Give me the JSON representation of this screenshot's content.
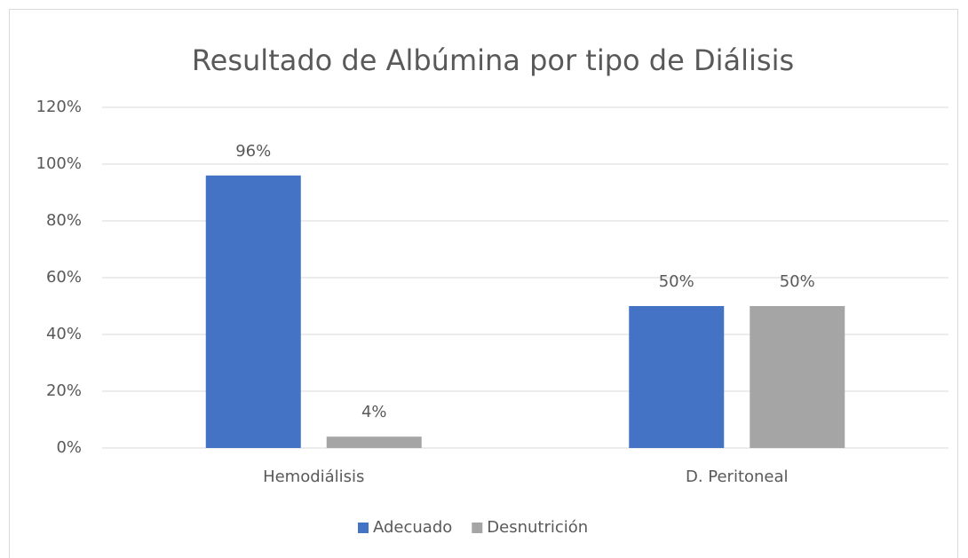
{
  "chart_data": {
    "type": "bar",
    "title": "Resultado de Albúmina por tipo de Diálisis",
    "categories": [
      "Hemodiálisis",
      "D. Peritoneal"
    ],
    "series": [
      {
        "name": "Adecuado",
        "color": "#4472c4",
        "values": [
          96,
          50
        ],
        "value_labels": [
          "96%",
          "50%"
        ]
      },
      {
        "name": "Desnutrición",
        "color": "#a5a5a5",
        "values": [
          4,
          50
        ],
        "value_labels": [
          "4%",
          "50%"
        ]
      }
    ],
    "ylim": [
      0,
      120
    ],
    "yticks": [
      {
        "value": 0,
        "label": "0%"
      },
      {
        "value": 20,
        "label": "20%"
      },
      {
        "value": 40,
        "label": "40%"
      },
      {
        "value": 60,
        "label": "60%"
      },
      {
        "value": 80,
        "label": "80%"
      },
      {
        "value": 100,
        "label": "100%"
      },
      {
        "value": 120,
        "label": "120%"
      }
    ],
    "grid": true,
    "legend": "bottom"
  }
}
